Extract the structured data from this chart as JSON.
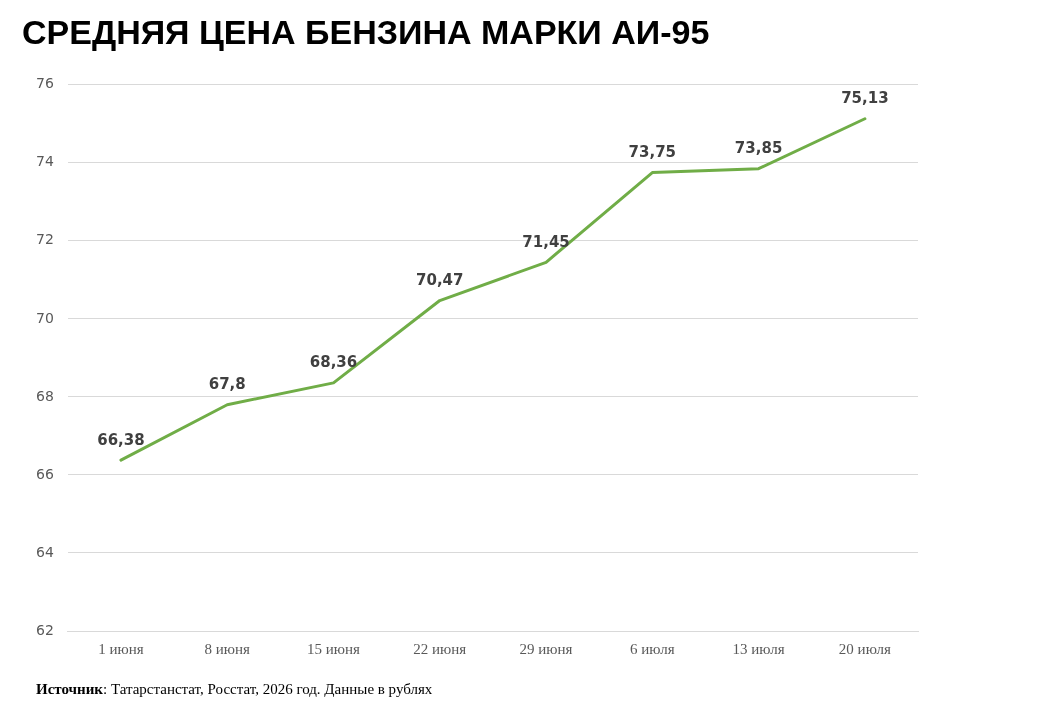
{
  "chart_data": {
    "type": "line",
    "title": "СРЕДНЯЯ ЦЕНА БЕНЗИНА МАРКИ АИ-95",
    "categories": [
      "1 июня",
      "8 июня",
      "15 июня",
      "22 июня",
      "29 июня",
      "6 июля",
      "13 июля",
      "20 июля"
    ],
    "series": [
      {
        "color": "#70ad47",
        "values": [
          66.38,
          67.8,
          68.36,
          70.47,
          71.45,
          73.75,
          73.85,
          75.13
        ],
        "value_labels": [
          "66,38",
          "67,8",
          "68,36",
          "70,47",
          "71,45",
          "73,75",
          "73,85",
          "75,13"
        ]
      }
    ],
    "ylim": [
      62,
      76
    ],
    "yticks": [
      62,
      64,
      66,
      68,
      70,
      72,
      74,
      76
    ],
    "grid": "y",
    "legend": false,
    "marker": "none",
    "line_style": "solid",
    "annotations": [
      "Источник: Татарстанстат, Росстат, 2026 год. Данные в рублях"
    ]
  }
}
